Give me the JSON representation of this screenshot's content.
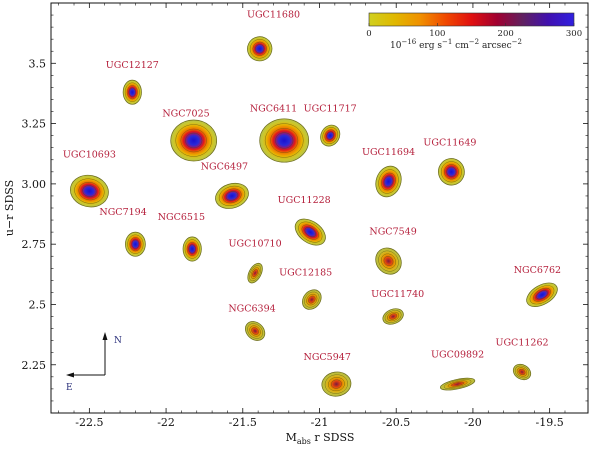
{
  "chart_data": {
    "type": "scatter",
    "title": "",
    "xlabel": "M",
    "xlabel_sub": "abs",
    "xlabel_suffix": " r SDSS",
    "ylabel": "u−r SDSS",
    "xlim": [
      -22.75,
      -19.25
    ],
    "ylim": [
      2.05,
      3.75
    ],
    "x_ticks": [
      -22.5,
      -22.0,
      -21.5,
      -21.0,
      -20.5,
      -20.0,
      -19.5
    ],
    "x_tick_labels": [
      "-22.5",
      "-22",
      "-21.5",
      "-21",
      "-20.5",
      "-20",
      "-19.5"
    ],
    "y_ticks": [
      2.25,
      2.5,
      2.75,
      3.0,
      3.25,
      3.5
    ],
    "y_tick_labels": [
      "2.25",
      "2.5",
      "2.75",
      "3.00",
      "3.25",
      "3.5"
    ],
    "grid": false,
    "points": [
      {
        "name": "UGC11680",
        "x": -21.39,
        "y": 3.56,
        "w": 0.16,
        "h": 0.1,
        "angle": 20,
        "peak": 1.0
      },
      {
        "name": "UGC12127",
        "x": -22.22,
        "y": 3.38,
        "w": 0.12,
        "h": 0.1,
        "angle": 0,
        "peak": 0.95
      },
      {
        "name": "NGC7025",
        "x": -21.82,
        "y": 3.18,
        "w": 0.3,
        "h": 0.17,
        "angle": 0,
        "peak": 1.0
      },
      {
        "name": "NGC6411",
        "x": -21.23,
        "y": 3.18,
        "w": 0.32,
        "h": 0.18,
        "angle": 0,
        "peak": 1.0
      },
      {
        "name": "UGC11717",
        "x": -20.93,
        "y": 3.2,
        "w": 0.12,
        "h": 0.09,
        "angle": -30,
        "peak": 0.85
      },
      {
        "name": "UGC10693",
        "x": -22.5,
        "y": 2.97,
        "w": 0.25,
        "h": 0.13,
        "angle": -12,
        "peak": 1.0
      },
      {
        "name": "NGC6497",
        "x": -21.57,
        "y": 2.95,
        "w": 0.22,
        "h": 0.1,
        "angle": 18,
        "peak": 0.9
      },
      {
        "name": "UGC11694",
        "x": -20.55,
        "y": 3.01,
        "w": 0.16,
        "h": 0.13,
        "angle": -20,
        "peak": 0.9
      },
      {
        "name": "UGC11649",
        "x": -20.14,
        "y": 3.05,
        "w": 0.17,
        "h": 0.11,
        "angle": 12,
        "peak": 0.85
      },
      {
        "name": "NGC7194",
        "x": -22.2,
        "y": 2.75,
        "w": 0.13,
        "h": 0.1,
        "angle": 0,
        "peak": 0.95
      },
      {
        "name": "NGC6515",
        "x": -21.83,
        "y": 2.73,
        "w": 0.12,
        "h": 0.1,
        "angle": 0,
        "peak": 0.95
      },
      {
        "name": "UGC11228",
        "x": -21.06,
        "y": 2.8,
        "w": 0.14,
        "h": 0.14,
        "angle": 55,
        "peak": 0.9
      },
      {
        "name": "UGC10710",
        "x": -21.42,
        "y": 2.63,
        "w": 0.14,
        "h": 0.05,
        "angle": 62,
        "peak": 0.6
      },
      {
        "name": "NGC7549",
        "x": -20.55,
        "y": 2.68,
        "w": 0.18,
        "h": 0.1,
        "angle": -50,
        "peak": 0.8
      },
      {
        "name": "UGC12185",
        "x": -21.05,
        "y": 2.52,
        "w": 0.14,
        "h": 0.07,
        "angle": 50,
        "peak": 0.7
      },
      {
        "name": "UGC11740",
        "x": -20.52,
        "y": 2.45,
        "w": 0.14,
        "h": 0.06,
        "angle": 22,
        "peak": 0.5
      },
      {
        "name": "NGC6762",
        "x": -19.55,
        "y": 2.54,
        "w": 0.22,
        "h": 0.08,
        "angle": 30,
        "peak": 0.95
      },
      {
        "name": "NGC6394",
        "x": -21.42,
        "y": 2.39,
        "w": 0.14,
        "h": 0.07,
        "angle": -42,
        "peak": 0.75
      },
      {
        "name": "NGC5947",
        "x": -20.89,
        "y": 2.17,
        "w": 0.19,
        "h": 0.1,
        "angle": 8,
        "peak": 0.8
      },
      {
        "name": "UGC09892",
        "x": -20.1,
        "y": 2.17,
        "w": 0.23,
        "h": 0.04,
        "angle": 12,
        "peak": 0.5
      },
      {
        "name": "UGC11262",
        "x": -19.68,
        "y": 2.22,
        "w": 0.12,
        "h": 0.06,
        "angle": -30,
        "peak": 0.7
      }
    ],
    "label_positions": [
      {
        "name": "UGC11680",
        "x": -21.3,
        "y": 3.69
      },
      {
        "name": "UGC12127",
        "x": -22.22,
        "y": 3.48
      },
      {
        "name": "NGC7025",
        "x": -21.87,
        "y": 3.28
      },
      {
        "name": "NGC6411",
        "x": -21.3,
        "y": 3.3
      },
      {
        "name": "UGC11717",
        "x": -20.93,
        "y": 3.3
      },
      {
        "name": "UGC10693",
        "x": -22.5,
        "y": 3.11
      },
      {
        "name": "NGC6497",
        "x": -21.62,
        "y": 3.06
      },
      {
        "name": "UGC11694",
        "x": -20.55,
        "y": 3.12
      },
      {
        "name": "UGC11649",
        "x": -20.15,
        "y": 3.16
      },
      {
        "name": "NGC7194",
        "x": -22.28,
        "y": 2.87
      },
      {
        "name": "NGC6515",
        "x": -21.9,
        "y": 2.85
      },
      {
        "name": "UGC11228",
        "x": -21.1,
        "y": 2.92
      },
      {
        "name": "UGC10710",
        "x": -21.42,
        "y": 2.74
      },
      {
        "name": "NGC7549",
        "x": -20.52,
        "y": 2.79
      },
      {
        "name": "UGC12185",
        "x": -21.09,
        "y": 2.62
      },
      {
        "name": "UGC11740",
        "x": -20.49,
        "y": 2.53
      },
      {
        "name": "NGC6762",
        "x": -19.58,
        "y": 2.63
      },
      {
        "name": "NGC6394",
        "x": -21.44,
        "y": 2.47
      },
      {
        "name": "NGC5947",
        "x": -20.95,
        "y": 2.27
      },
      {
        "name": "UGC09892",
        "x": -20.1,
        "y": 2.28
      },
      {
        "name": "UGC11262",
        "x": -19.68,
        "y": 2.33
      }
    ],
    "colorbar": {
      "min": 0,
      "max": 300,
      "ticks": [
        0,
        100,
        200,
        300
      ],
      "tick_labels": [
        "0",
        "100",
        "200",
        "300"
      ],
      "unit_prefix": "10",
      "unit_exp1": "−16",
      "unit_mid": " erg s",
      "unit_exp2": "−1",
      "unit_mid2": " cm",
      "unit_exp3": "−2",
      "unit_mid3": " arcsec",
      "unit_exp4": "−2",
      "colors": [
        "#d0d020",
        "#e0b800",
        "#f09000",
        "#f04800",
        "#e01010",
        "#a00030",
        "#602060",
        "#4010b0",
        "#3020e0"
      ]
    },
    "compass": {
      "north": "N",
      "east": "E"
    }
  }
}
